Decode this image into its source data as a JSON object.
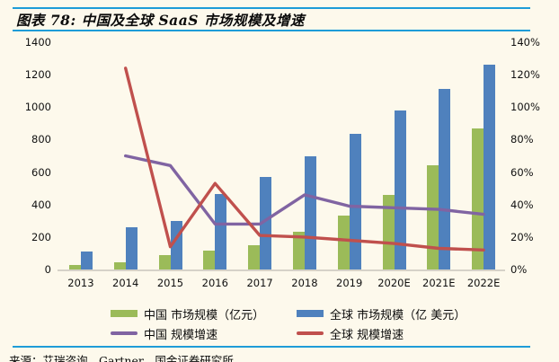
{
  "header": {
    "title": "图表 78:  中国及全球 SaaS 市场规模及增速"
  },
  "footer": {
    "source": "来源：艾瑞咨询，Gartner，国金证券研究所"
  },
  "colors": {
    "background": "#FDF9EC",
    "rule_blue": "#1E9CD8",
    "china_bar": "#9BBB59",
    "global_bar": "#4F81BD",
    "china_line": "#8064A2",
    "global_line": "#C0504D",
    "axis_line": "#D6D2C8",
    "text": "#111111"
  },
  "chart_data": {
    "type": "bar",
    "subtype": "combo_bar_line_dual_axis",
    "title": "中国及全球 SaaS 市场规模及增速",
    "categories": [
      "2013",
      "2014",
      "2015",
      "2016",
      "2017",
      "2018",
      "2019",
      "2020E",
      "2021E",
      "2022E"
    ],
    "series": [
      {
        "name": "中国 市场规模（亿元）",
        "type": "bar",
        "axis": "left",
        "color_key": "china_bar",
        "values": [
          25,
          45,
          90,
          115,
          150,
          230,
          330,
          460,
          640,
          870
        ]
      },
      {
        "name": "全球 市场规模（亿 美元）",
        "type": "bar",
        "axis": "left",
        "color_key": "global_bar",
        "values": [
          110,
          260,
          300,
          465,
          570,
          700,
          835,
          980,
          1115,
          1260
        ]
      },
      {
        "name": "中国 规模增速",
        "type": "line",
        "axis": "right",
        "color_key": "china_line",
        "values": [
          null,
          70,
          64,
          28,
          28,
          46,
          39,
          38,
          37,
          34
        ]
      },
      {
        "name": "全球 规模增速",
        "type": "line",
        "axis": "right",
        "color_key": "global_line",
        "values": [
          null,
          124,
          14,
          53,
          21,
          20,
          18,
          16,
          13,
          12
        ]
      }
    ],
    "left_axis": {
      "min": 0,
      "max": 1400,
      "step": 200,
      "labels": [
        "0",
        "200",
        "400",
        "600",
        "800",
        "1000",
        "1200",
        "1400"
      ]
    },
    "right_axis": {
      "min": 0,
      "max": 140,
      "step": 20,
      "unit": "%",
      "labels": [
        "0%",
        "20%",
        "40%",
        "60%",
        "80%",
        "100%",
        "120%",
        "140%"
      ]
    },
    "grid": false,
    "legend_position": "bottom"
  },
  "legend": {
    "items": [
      {
        "label": "中国 市场规模（亿元）",
        "swatch": "bar",
        "color_key": "china_bar"
      },
      {
        "label": "全球 市场规模（亿 美元）",
        "swatch": "bar",
        "color_key": "global_bar"
      },
      {
        "label": "中国 规模增速",
        "swatch": "line",
        "color_key": "china_line"
      },
      {
        "label": "全球 规模增速",
        "swatch": "line",
        "color_key": "global_line"
      }
    ]
  }
}
